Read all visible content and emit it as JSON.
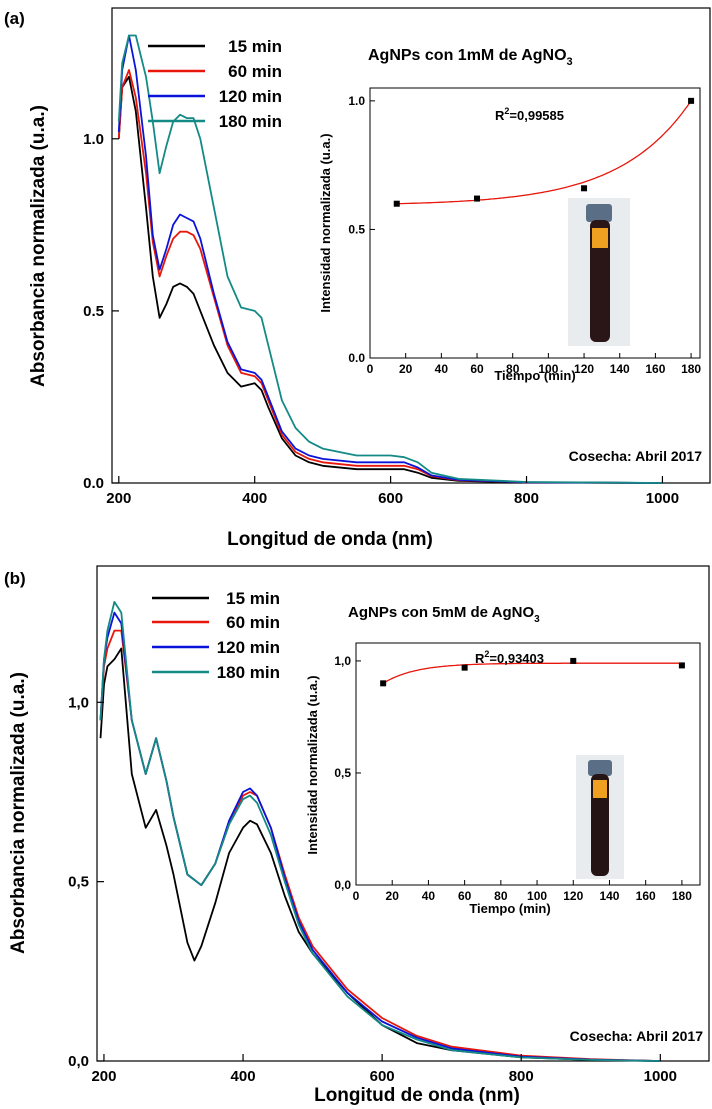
{
  "chart_data": [
    {
      "type": "line",
      "panel_label": "(a)",
      "title_main": "AgNPs con 1mM de AgNO",
      "title_sub": "3",
      "annotation": "Cosecha: Abril 2017",
      "xlabel": "Longitud de onda (nm)",
      "ylabel": "Absorbancia normalizada (u.a.)",
      "xlim": [
        190,
        1070
      ],
      "ylim": [
        0,
        1.38
      ],
      "xticks": [
        200,
        400,
        600,
        800,
        1000
      ],
      "yticks": [
        0,
        0.5,
        1.0
      ],
      "ytick_labels": [
        "0.0",
        "0.5",
        "1.0"
      ],
      "series": [
        {
          "name": "15 min",
          "color": "#000000",
          "x": [
            200,
            205,
            215,
            225,
            240,
            250,
            260,
            270,
            280,
            290,
            300,
            310,
            320,
            340,
            360,
            380,
            400,
            410,
            420,
            440,
            460,
            480,
            500,
            550,
            600,
            620,
            640,
            660,
            700,
            800,
            1000
          ],
          "y": [
            1.0,
            1.15,
            1.18,
            1.08,
            0.8,
            0.6,
            0.48,
            0.52,
            0.57,
            0.58,
            0.57,
            0.55,
            0.5,
            0.4,
            0.32,
            0.28,
            0.29,
            0.27,
            0.22,
            0.13,
            0.08,
            0.06,
            0.05,
            0.04,
            0.04,
            0.04,
            0.03,
            0.015,
            0.006,
            0.002,
            0.0
          ]
        },
        {
          "name": "60 min",
          "color": "#e8170c",
          "x": [
            200,
            205,
            215,
            225,
            240,
            250,
            260,
            270,
            280,
            290,
            300,
            310,
            320,
            340,
            360,
            380,
            400,
            410,
            420,
            440,
            460,
            480,
            500,
            550,
            600,
            620,
            640,
            660,
            700,
            800,
            1000
          ],
          "y": [
            1.0,
            1.15,
            1.2,
            1.12,
            0.9,
            0.7,
            0.6,
            0.66,
            0.71,
            0.73,
            0.73,
            0.72,
            0.68,
            0.54,
            0.4,
            0.32,
            0.31,
            0.29,
            0.24,
            0.14,
            0.09,
            0.07,
            0.06,
            0.05,
            0.05,
            0.05,
            0.04,
            0.02,
            0.008,
            0.002,
            0.0
          ]
        },
        {
          "name": "120 min",
          "color": "#0a14d8",
          "x": [
            200,
            205,
            215,
            225,
            240,
            250,
            260,
            270,
            280,
            290,
            300,
            310,
            320,
            340,
            360,
            380,
            400,
            410,
            420,
            440,
            460,
            480,
            500,
            550,
            600,
            620,
            640,
            660,
            700,
            800,
            1000
          ],
          "y": [
            1.02,
            1.2,
            1.3,
            1.2,
            0.95,
            0.72,
            0.62,
            0.68,
            0.75,
            0.78,
            0.77,
            0.76,
            0.71,
            0.55,
            0.41,
            0.33,
            0.32,
            0.3,
            0.25,
            0.15,
            0.1,
            0.08,
            0.07,
            0.06,
            0.06,
            0.06,
            0.045,
            0.022,
            0.009,
            0.002,
            0.0
          ]
        },
        {
          "name": "180 min",
          "color": "#138a86",
          "x": [
            200,
            205,
            215,
            225,
            240,
            250,
            260,
            270,
            280,
            290,
            300,
            310,
            320,
            340,
            360,
            380,
            400,
            410,
            420,
            440,
            460,
            480,
            500,
            550,
            600,
            620,
            640,
            660,
            700,
            800,
            1000
          ],
          "y": [
            1.05,
            1.22,
            1.3,
            1.3,
            1.18,
            1.05,
            0.9,
            0.98,
            1.05,
            1.07,
            1.06,
            1.06,
            1.0,
            0.8,
            0.6,
            0.51,
            0.5,
            0.48,
            0.4,
            0.24,
            0.16,
            0.12,
            0.1,
            0.08,
            0.08,
            0.075,
            0.06,
            0.03,
            0.012,
            0.003,
            0.0
          ]
        }
      ],
      "inset": {
        "type": "scatter",
        "xlabel": "Tiempo (min)",
        "ylabel": "Intensidad normalizada (u.a.)",
        "xlim": [
          0,
          185
        ],
        "ylim": [
          0,
          1.05
        ],
        "xticks": [
          0,
          20,
          40,
          60,
          80,
          100,
          120,
          140,
          160,
          180
        ],
        "yticks": [
          0,
          0.5,
          1.0
        ],
        "ytick_labels": [
          "0.0",
          "0.5",
          "1.0"
        ],
        "r2_label": "R",
        "r2_sup": "2",
        "r2_value": "=0,99585",
        "points_x": [
          15,
          60,
          120,
          180
        ],
        "points_y": [
          0.6,
          0.62,
          0.66,
          1.0
        ],
        "fit_model": "exponential growth",
        "fit_color": "#e8170c"
      }
    },
    {
      "type": "line",
      "panel_label": "(b)",
      "title_main": "AgNPs con 5mM de AgNO",
      "title_sub": "3",
      "annotation": "Cosecha: Abril 2017",
      "xlabel": "Longitud de onda (nm)",
      "ylabel": "Absorbancia normalizada (u.a.)",
      "xlim": [
        190,
        1070
      ],
      "ylim": [
        0,
        1.38
      ],
      "xticks": [
        200,
        400,
        600,
        800,
        1000
      ],
      "yticks": [
        0,
        0.5,
        1.0
      ],
      "ytick_labels": [
        "0,0",
        "0,5",
        "1,0"
      ],
      "series": [
        {
          "name": "15 min",
          "color": "#000000",
          "x": [
            195,
            200,
            205,
            215,
            225,
            240,
            260,
            275,
            290,
            300,
            320,
            330,
            340,
            360,
            380,
            400,
            410,
            420,
            440,
            460,
            480,
            500,
            550,
            600,
            650,
            700,
            800,
            900,
            1000
          ],
          "y": [
            0.9,
            1.05,
            1.1,
            1.12,
            1.15,
            0.8,
            0.65,
            0.7,
            0.6,
            0.52,
            0.33,
            0.28,
            0.32,
            0.44,
            0.58,
            0.65,
            0.67,
            0.66,
            0.58,
            0.46,
            0.36,
            0.3,
            0.19,
            0.1,
            0.05,
            0.03,
            0.01,
            0.003,
            0.0
          ]
        },
        {
          "name": "60 min",
          "color": "#e8170c",
          "x": [
            195,
            200,
            205,
            215,
            225,
            240,
            260,
            275,
            290,
            300,
            320,
            340,
            360,
            380,
            400,
            410,
            420,
            440,
            460,
            480,
            500,
            550,
            600,
            650,
            700,
            800,
            900,
            1000
          ],
          "y": [
            0.95,
            1.1,
            1.15,
            1.2,
            1.2,
            0.95,
            0.8,
            0.9,
            0.78,
            0.68,
            0.52,
            0.49,
            0.55,
            0.66,
            0.74,
            0.75,
            0.74,
            0.65,
            0.52,
            0.4,
            0.32,
            0.2,
            0.12,
            0.07,
            0.04,
            0.015,
            0.005,
            0.0
          ]
        },
        {
          "name": "120 min",
          "color": "#0a14d8",
          "x": [
            195,
            200,
            205,
            215,
            225,
            240,
            260,
            275,
            290,
            300,
            320,
            340,
            360,
            380,
            400,
            410,
            420,
            440,
            460,
            480,
            500,
            550,
            600,
            650,
            700,
            800,
            900,
            1000
          ],
          "y": [
            0.95,
            1.12,
            1.18,
            1.25,
            1.22,
            0.95,
            0.8,
            0.9,
            0.78,
            0.68,
            0.52,
            0.49,
            0.55,
            0.67,
            0.75,
            0.76,
            0.74,
            0.65,
            0.51,
            0.39,
            0.31,
            0.19,
            0.11,
            0.065,
            0.035,
            0.012,
            0.004,
            0.0
          ]
        },
        {
          "name": "180 min",
          "color": "#138a86",
          "x": [
            195,
            200,
            205,
            215,
            225,
            240,
            260,
            275,
            290,
            300,
            320,
            340,
            360,
            380,
            400,
            410,
            420,
            440,
            460,
            480,
            500,
            550,
            600,
            650,
            700,
            800,
            900,
            1000
          ],
          "y": [
            0.95,
            1.12,
            1.2,
            1.28,
            1.25,
            0.95,
            0.8,
            0.9,
            0.78,
            0.68,
            0.52,
            0.49,
            0.55,
            0.66,
            0.73,
            0.74,
            0.72,
            0.63,
            0.5,
            0.38,
            0.3,
            0.18,
            0.1,
            0.06,
            0.03,
            0.01,
            0.003,
            0.0
          ]
        }
      ],
      "inset": {
        "type": "scatter",
        "xlabel": "Tiempo (min)",
        "ylabel": "Intensidad normalizada (u.a.)",
        "xlim": [
          0,
          190
        ],
        "ylim": [
          0,
          1.08
        ],
        "xticks": [
          0,
          20,
          40,
          60,
          80,
          100,
          120,
          140,
          160,
          180
        ],
        "yticks": [
          0,
          0.5,
          1.0
        ],
        "ytick_labels": [
          "0,0",
          "0,5",
          "1,0"
        ],
        "r2_label": "R",
        "r2_sup": "2",
        "r2_value": "=0,93403",
        "points_x": [
          15,
          60,
          120,
          180
        ],
        "points_y": [
          0.9,
          0.97,
          1.0,
          0.98
        ],
        "fit_model": "exponential saturation",
        "fit_color": "#e8170c"
      }
    }
  ]
}
